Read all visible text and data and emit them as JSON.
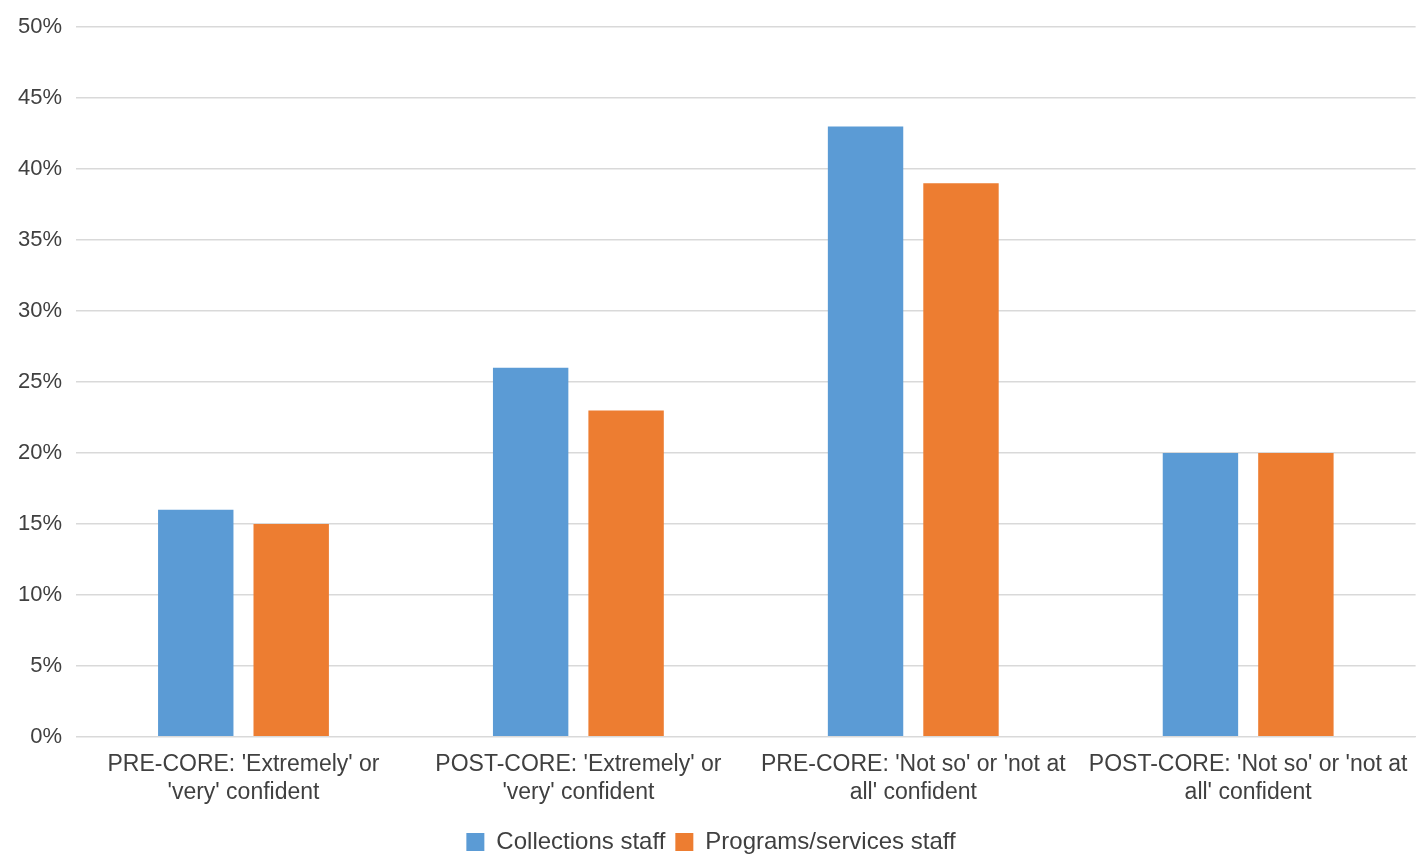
{
  "chart_data": {
    "type": "bar",
    "categories": [
      "PRE-CORE: 'Extremely' or 'very' confident",
      "POST-CORE: 'Extremely' or 'very' confident",
      "PRE-CORE: 'Not so' or 'not at all' confident",
      "POST-CORE: 'Not so' or 'not at all' confident"
    ],
    "series": [
      {
        "name": "Collections staff",
        "color": "#5b9bd5",
        "values": [
          16,
          26,
          43,
          20
        ]
      },
      {
        "name": "Programs/services staff",
        "color": "#ed7d31",
        "values": [
          15,
          23,
          39,
          20
        ]
      }
    ],
    "ylim": [
      0,
      50
    ],
    "yticks": [
      {
        "value": 0,
        "label": "0%"
      },
      {
        "value": 5,
        "label": "5%"
      },
      {
        "value": 10,
        "label": "10%"
      },
      {
        "value": 15,
        "label": "15%"
      },
      {
        "value": 20,
        "label": "20%"
      },
      {
        "value": 25,
        "label": "25%"
      },
      {
        "value": 30,
        "label": "30%"
      },
      {
        "value": 35,
        "label": "35%"
      },
      {
        "value": 40,
        "label": "40%"
      },
      {
        "value": 45,
        "label": "45%"
      },
      {
        "value": 50,
        "label": "50%"
      }
    ],
    "grid": "y",
    "legend": "bottom"
  }
}
